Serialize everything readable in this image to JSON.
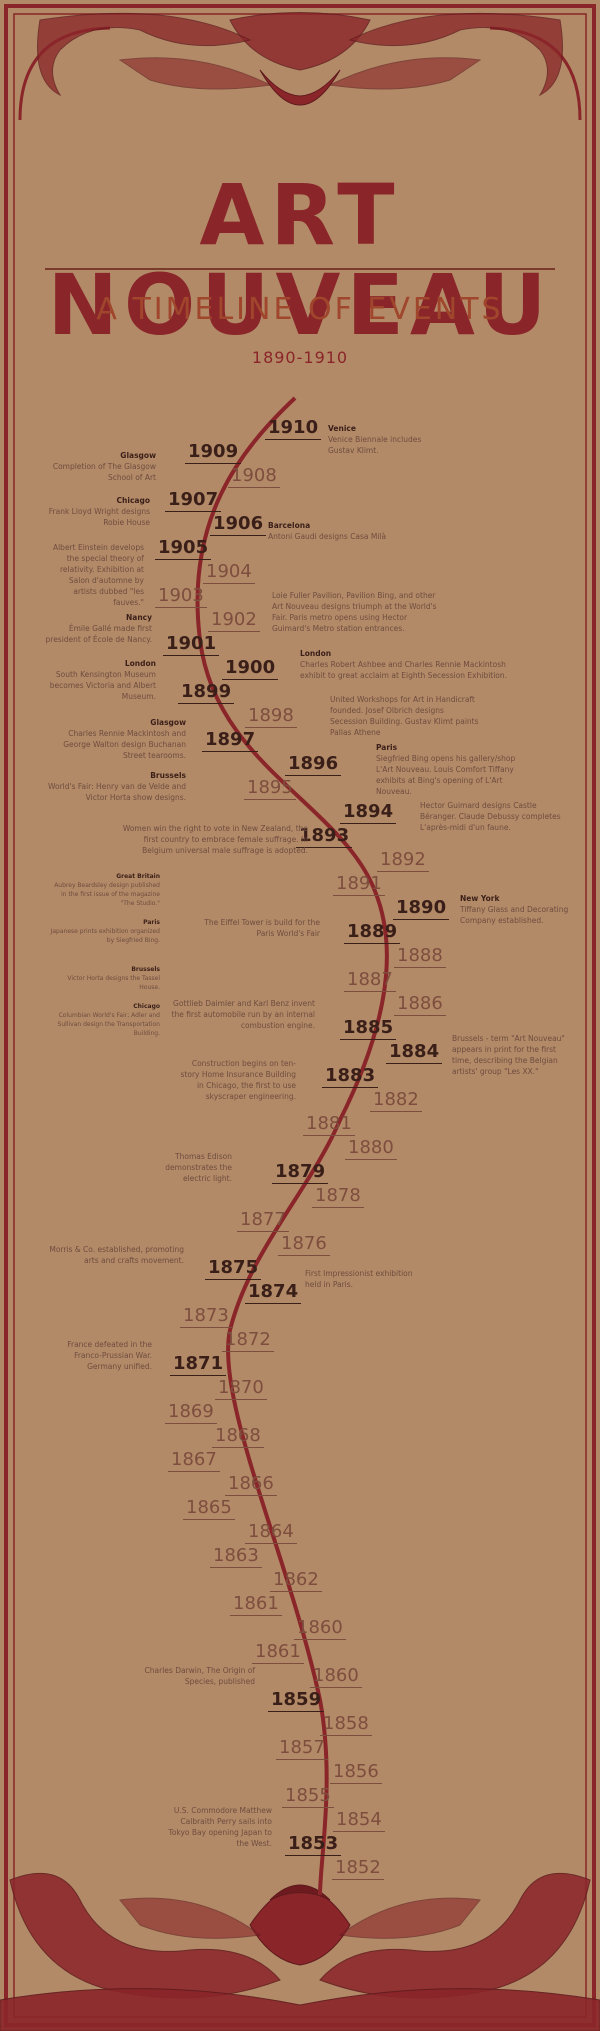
{
  "header": {
    "title": "ART NOUVEAU",
    "subtitle": "A TIMELINE OF EVENTS",
    "date_range": "1890-1910"
  },
  "colors": {
    "background": "#b38a67",
    "ornament": "#8a2529",
    "ink": "#3a1f19",
    "muted": "#7d4e3e"
  },
  "years": [
    {
      "label": "1910",
      "event": true
    },
    {
      "label": "1909",
      "event": true
    },
    {
      "label": "1908",
      "event": false
    },
    {
      "label": "1907",
      "event": true
    },
    {
      "label": "1906",
      "event": true
    },
    {
      "label": "1905",
      "event": true
    },
    {
      "label": "1904",
      "event": false
    },
    {
      "label": "1903",
      "event": false
    },
    {
      "label": "1902",
      "event": false
    },
    {
      "label": "1901",
      "event": true
    },
    {
      "label": "1900",
      "event": true
    },
    {
      "label": "1899",
      "event": true
    },
    {
      "label": "1898",
      "event": false
    },
    {
      "label": "1897",
      "event": true
    },
    {
      "label": "1896",
      "event": true
    },
    {
      "label": "1895",
      "event": false
    },
    {
      "label": "1894",
      "event": true
    },
    {
      "label": "1893",
      "event": true
    },
    {
      "label": "1892",
      "event": false
    },
    {
      "label": "1891",
      "event": false
    },
    {
      "label": "1890",
      "event": true
    },
    {
      "label": "1889",
      "event": true
    },
    {
      "label": "1888",
      "event": false
    },
    {
      "label": "1887",
      "event": false
    },
    {
      "label": "1886",
      "event": false
    },
    {
      "label": "1885",
      "event": true
    },
    {
      "label": "1884",
      "event": true
    },
    {
      "label": "1883",
      "event": true
    },
    {
      "label": "1882",
      "event": false
    },
    {
      "label": "1881",
      "event": false
    },
    {
      "label": "1880",
      "event": false
    },
    {
      "label": "1879",
      "event": true
    },
    {
      "label": "1878",
      "event": false
    },
    {
      "label": "1877",
      "event": false
    },
    {
      "label": "1876",
      "event": false
    },
    {
      "label": "1875",
      "event": true
    },
    {
      "label": "1874",
      "event": true
    },
    {
      "label": "1873",
      "event": false
    },
    {
      "label": "1872",
      "event": false
    },
    {
      "label": "1871",
      "event": true
    },
    {
      "label": "1870",
      "event": false
    },
    {
      "label": "1869",
      "event": false
    },
    {
      "label": "1868",
      "event": false
    },
    {
      "label": "1867",
      "event": false
    },
    {
      "label": "1866",
      "event": false
    },
    {
      "label": "1865",
      "event": false
    },
    {
      "label": "1864",
      "event": false
    },
    {
      "label": "1863",
      "event": false
    },
    {
      "label": "1862",
      "event": false
    },
    {
      "label": "1861",
      "event": false
    },
    {
      "label": "1860",
      "event": false
    },
    {
      "label": "1861",
      "event": false
    },
    {
      "label": "1860",
      "event": false
    },
    {
      "label": "1859",
      "event": true
    },
    {
      "label": "1858",
      "event": false
    },
    {
      "label": "1857",
      "event": false
    },
    {
      "label": "1856",
      "event": false
    },
    {
      "label": "1855",
      "event": false
    },
    {
      "label": "1854",
      "event": false
    },
    {
      "label": "1853",
      "event": true
    },
    {
      "label": "1852",
      "event": false
    }
  ],
  "events": [
    {
      "place": "Venice",
      "text": "Venice Biennale includes Gustav Klimt."
    },
    {
      "place": "Glasgow",
      "text": "Completion of The Glasgow School of Art"
    },
    {
      "place": "Chicago",
      "text": "Frank Lloyd Wright designs Robie House"
    },
    {
      "place": "Barcelona",
      "text": "Antoni Gaudi designs Casa Milà"
    },
    {
      "place": "",
      "text": "Albert Einstein develops the special theory of relativity. Exhibition at Salon d'automne by artists dubbed \"les fauves.\""
    },
    {
      "place": "",
      "text": "Loie Fuller Pavilion, Pavilion Bing, and other Art Nouveau designs triumph at the World's Fair. Paris metro opens using Hector Guimard's Metro station entrances."
    },
    {
      "place": "Nancy",
      "text": "Émile Gallé made first president of École de Nancy."
    },
    {
      "place": "London",
      "text": "Charles Robert Ashbee and Charles Rennie Mackintosh exhibit to great acclaim at Eighth Secession Exhibition."
    },
    {
      "place": "London",
      "text": "South Kensington Museum becomes Victoria and Albert Museum."
    },
    {
      "place": "",
      "text": "United Workshops for Art in Handicraft founded. Josef Olbrich designs Secession Building. Gustav Klimt paints Pallas Athene"
    },
    {
      "place": "Glasgow",
      "text": "Charles Rennie Mackintosh and George Walton design Buchanan Street tearooms."
    },
    {
      "place": "Paris",
      "text": "Siegfried Bing opens his gallery/shop L'Art Nouveau. Louis Comfort Tiffany exhibits at  Bing's opening of L'Art Nouveau."
    },
    {
      "place": "Brussels",
      "text": "World's Fair: Henry van de Velde and Victor Horta show designs."
    },
    {
      "place": "",
      "text": "Hector Guimard designs Castle Béranger. Claude Debussy completes L'après-midi d'un faune."
    },
    {
      "place": "",
      "text": "Women win the right to vote in New Zealand, the first country to embrace female suffrage. In Belgium universal male suffrage is adopted."
    },
    {
      "place": "Great Britain",
      "text": "Aubrey Beardsley design published in the first issue of the magazine \"The Studio.\""
    },
    {
      "place": "Paris",
      "text": "Japanese prints exhibition organized by Siegfried Bing."
    },
    {
      "place": "Brussels",
      "text": "Victor Horta designs the Tassel House."
    },
    {
      "place": "Chicago",
      "text": "Columbian World's Fair; Adler and Sullivan design the Transportation Building."
    },
    {
      "place": "New York",
      "text": "Tiffany Glass and Decorating Company established."
    },
    {
      "place": "",
      "text": "The Eiffel Tower is build for the Paris World's Fair"
    },
    {
      "place": "",
      "text": "Gottlieb Daimler and Karl Benz invent the first automobile run by an internal combustion engine."
    },
    {
      "place": "",
      "text": "Brussels - term \"Art Nouveau\" appears in print for the first time, describing the Belgian artists' group \"Les XX.\""
    },
    {
      "place": "",
      "text": "Construction begins on ten-story Home Insurance Building in Chicago, the first to use skyscraper engineering."
    },
    {
      "place": "",
      "text": "Thomas Edison demonstrates the electric light."
    },
    {
      "place": "",
      "text": "Morris & Co. established, promoting arts and crafts movement."
    },
    {
      "place": "",
      "text": "First Impressionist exhibition held in Paris."
    },
    {
      "place": "",
      "text": "France defeated in the Franco-Prussian War. Germany unified."
    },
    {
      "place": "",
      "text": "Charles Darwin, The Origin of Species, published"
    },
    {
      "place": "",
      "text": "U.S. Commodore Matthew Calbraith Perry sails into Tokyo Bay opening Japan to the West."
    }
  ]
}
